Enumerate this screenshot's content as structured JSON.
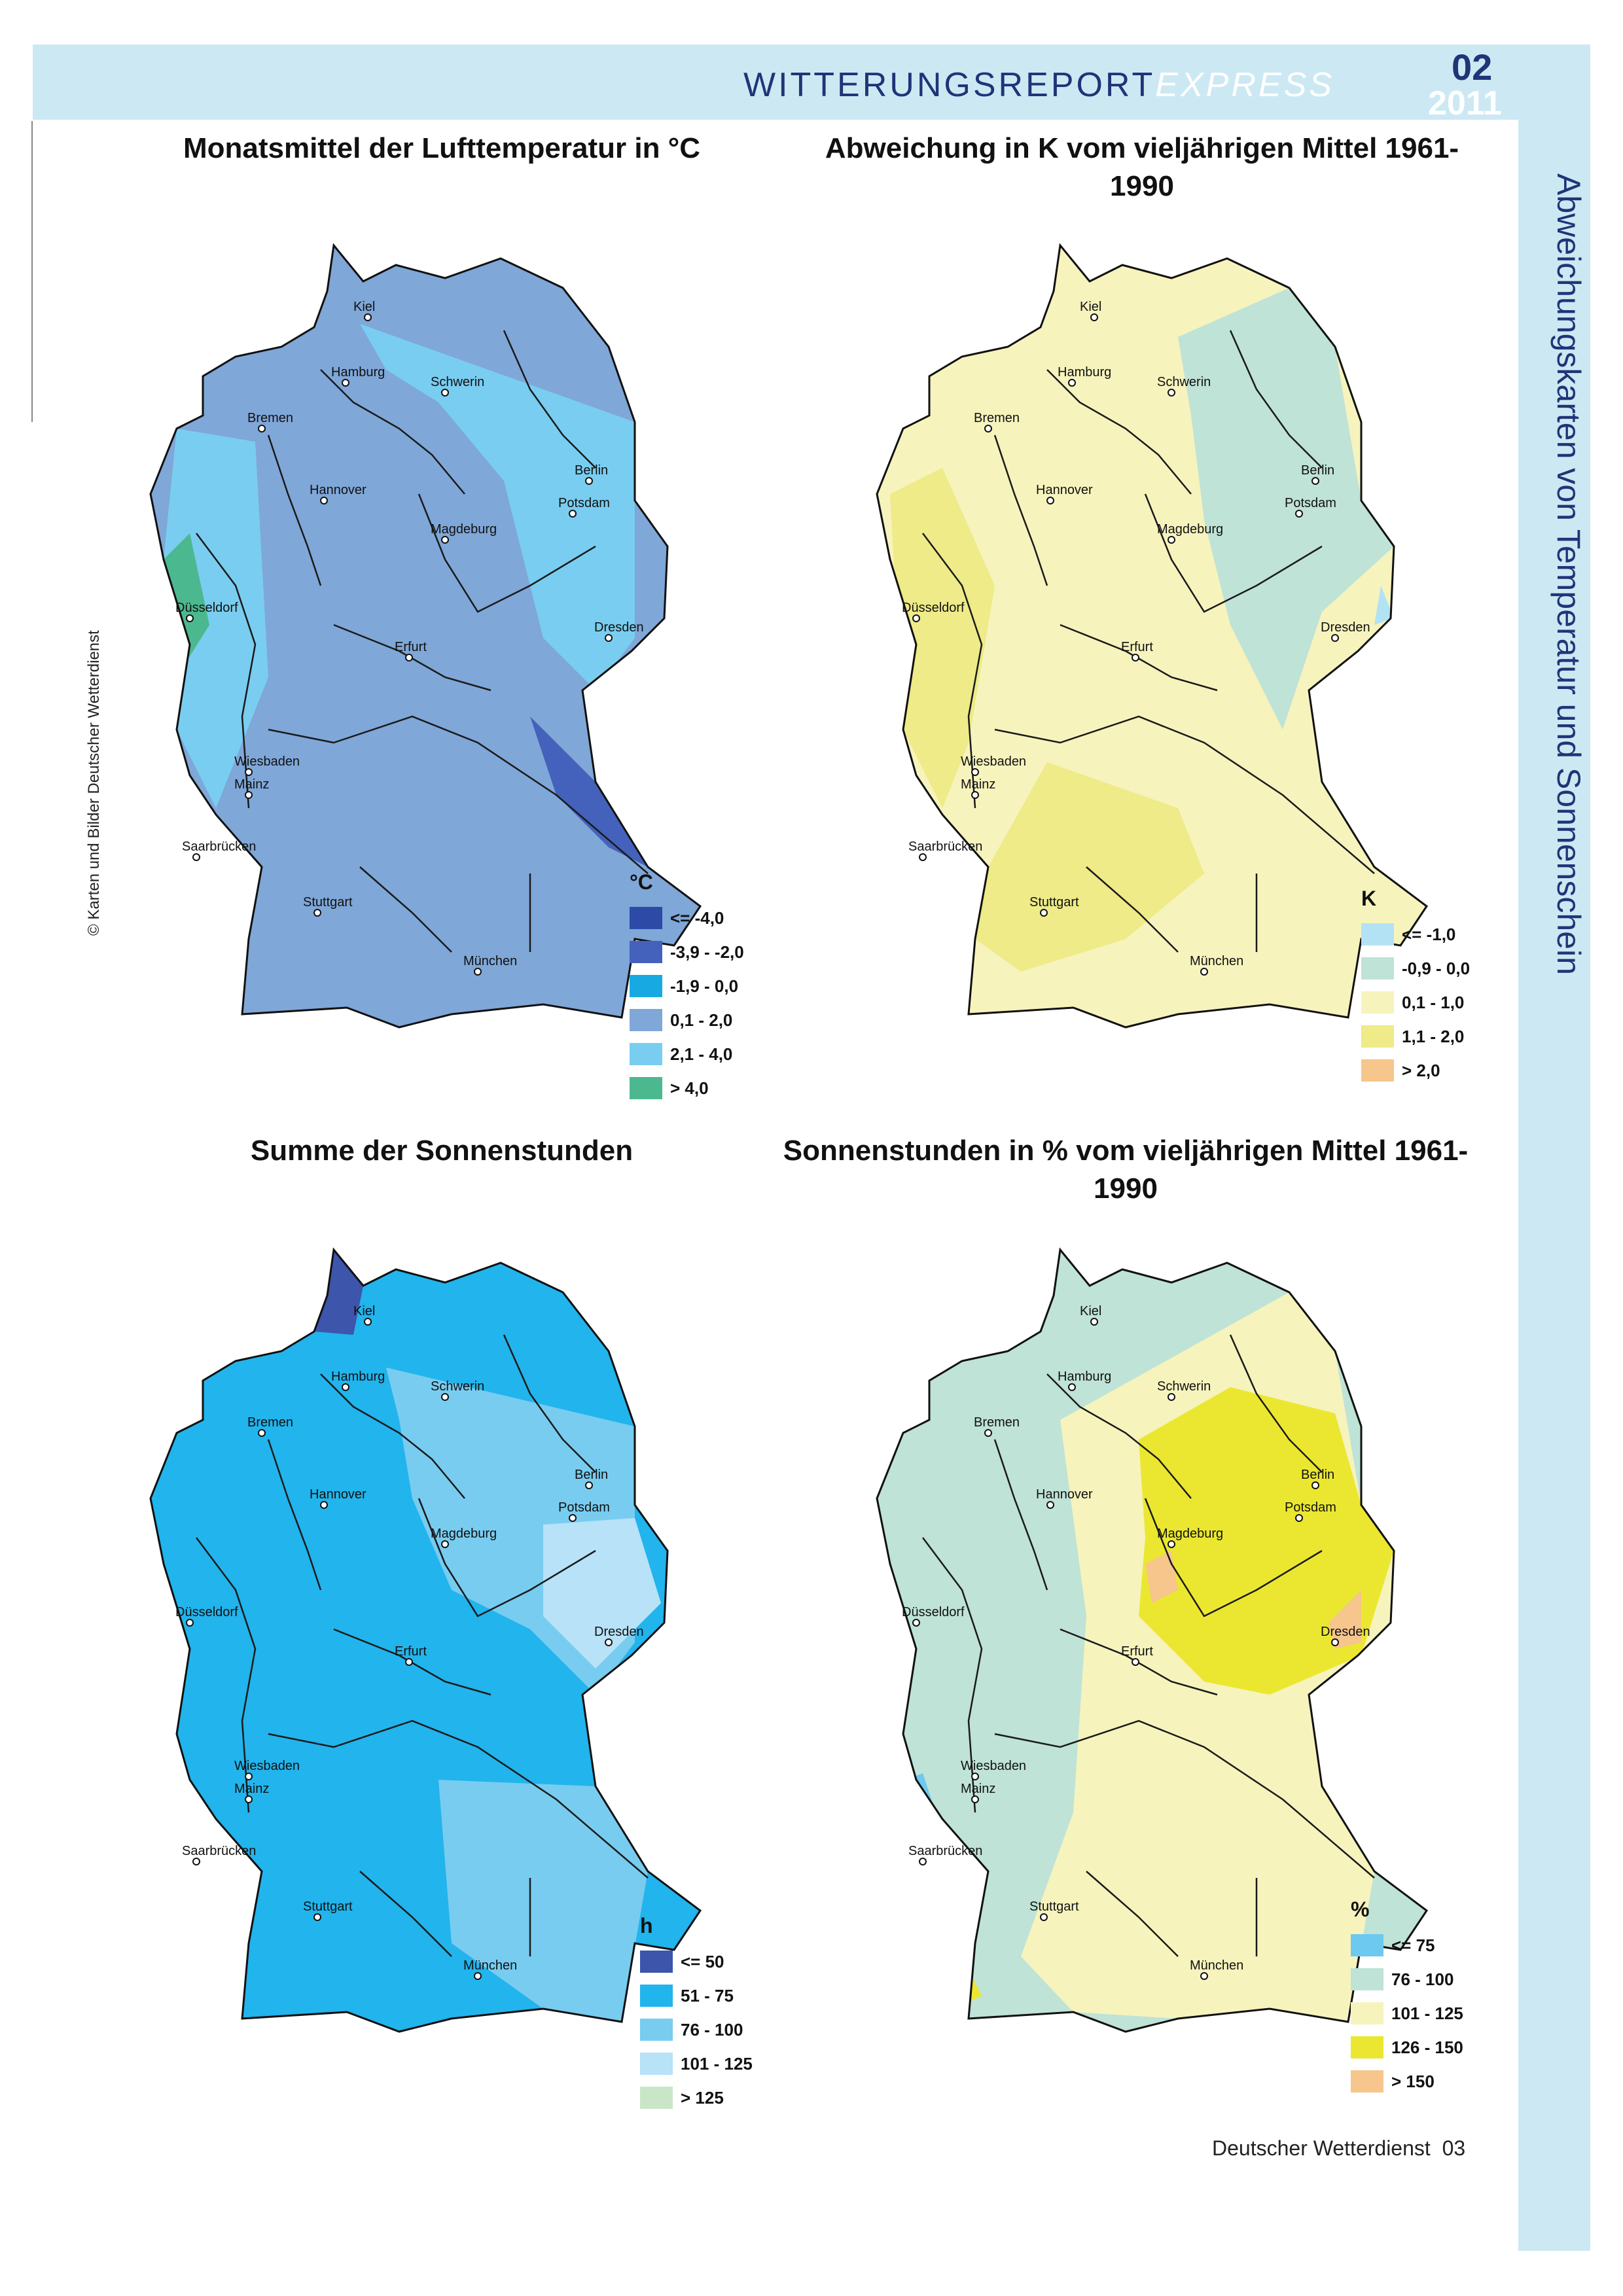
{
  "header": {
    "report": "WITTERUNGSREPORT",
    "express": "EXPRESS",
    "issue": "02",
    "year": "2011"
  },
  "side_title": "Abweichungskarten von Temperatur und Sonnenschein",
  "credit": "© Karten und Bilder Deutscher Wetterdienst",
  "footer": {
    "publisher": "Deutscher Wetterdienst",
    "page": "03"
  },
  "cities": [
    "Kiel",
    "Hamburg",
    "Schwerin",
    "Bremen",
    "Berlin",
    "Hannover",
    "Potsdam",
    "Magdeburg",
    "Düsseldorf",
    "Dresden",
    "Erfurt",
    "Wiesbaden",
    "Mainz",
    "Saarbrücken",
    "Stuttgart",
    "München"
  ],
  "panels": [
    {
      "title": "Monatsmittel der Lufttemperatur in °C",
      "base_color": "#7fa7d8",
      "legend": {
        "unit": "°C",
        "items": [
          {
            "label": "<= -4,0",
            "color": "#2c4aa6"
          },
          {
            "label": "-3,9 - -2,0",
            "color": "#4462bb"
          },
          {
            "label": "-1,9 - 0,0",
            "color": "#17a9e1"
          },
          {
            "label": "0,1 - 2,0",
            "color": "#7fa7d8"
          },
          {
            "label": "2,1 - 4,0",
            "color": "#79cdf0"
          },
          {
            "label": "> 4,0",
            "color": "#4cb88f"
          }
        ]
      }
    },
    {
      "title": "Abweichung in K vom vieljährigen Mittel 1961-1990",
      "base_color": "#f6f3bd",
      "legend": {
        "unit": "K",
        "items": [
          {
            "label": "<= -1,0",
            "color": "#b4e2f5"
          },
          {
            "label": "-0,9 - 0,0",
            "color": "#bfe3d6"
          },
          {
            "label": "0,1 - 1,0",
            "color": "#f6f3bd"
          },
          {
            "label": "1,1 - 2,0",
            "color": "#eeeb88"
          },
          {
            "label": "> 2,0",
            "color": "#f6c68c"
          }
        ]
      }
    },
    {
      "title": "Summe der Sonnenstunden",
      "base_color": "#22b4ec",
      "legend": {
        "unit": "h",
        "items": [
          {
            "label": "<= 50",
            "color": "#3d55ab"
          },
          {
            "label": "51 - 75",
            "color": "#22b4ec"
          },
          {
            "label": "76 - 100",
            "color": "#78ccf0"
          },
          {
            "label": "101 - 125",
            "color": "#b7e2f7"
          },
          {
            "label": "> 125",
            "color": "#c9e7c8"
          }
        ]
      }
    },
    {
      "title": "Sonnenstunden in % vom vieljährigen Mittel 1961-1990",
      "base_color": "#bfe3d6",
      "legend": {
        "unit": "%",
        "items": [
          {
            "label": "<= 75",
            "color": "#6dc9ef"
          },
          {
            "label": "76 - 100",
            "color": "#bfe3d6"
          },
          {
            "label": "101 - 125",
            "color": "#f6f3bd"
          },
          {
            "label": "126 - 150",
            "color": "#ebe730"
          },
          {
            "label": "> 150",
            "color": "#f6c68c"
          }
        ]
      }
    }
  ]
}
